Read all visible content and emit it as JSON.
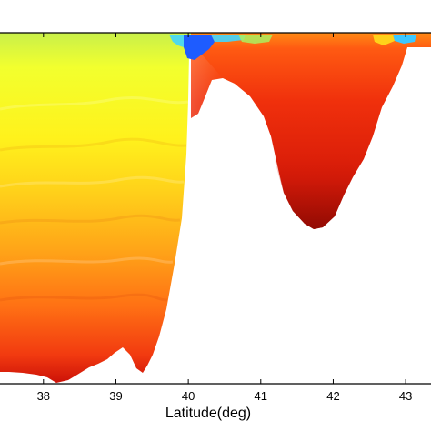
{
  "chart_data": {
    "type": "heatmap",
    "xlabel": "Latitude(deg)",
    "x_ticks": [
      38,
      39,
      40,
      41,
      42,
      43
    ],
    "xlim": [
      37.4,
      43.35
    ],
    "colormap": "jet",
    "grid": false,
    "legend": "none",
    "colors": {
      "surface_cold": "#1e6fff",
      "upper": "#e6ff3a",
      "middle": "#ffb21a",
      "lower": "#f04a12",
      "deep": "#b51106",
      "background": "#ffffff",
      "axis": "#000000"
    }
  }
}
